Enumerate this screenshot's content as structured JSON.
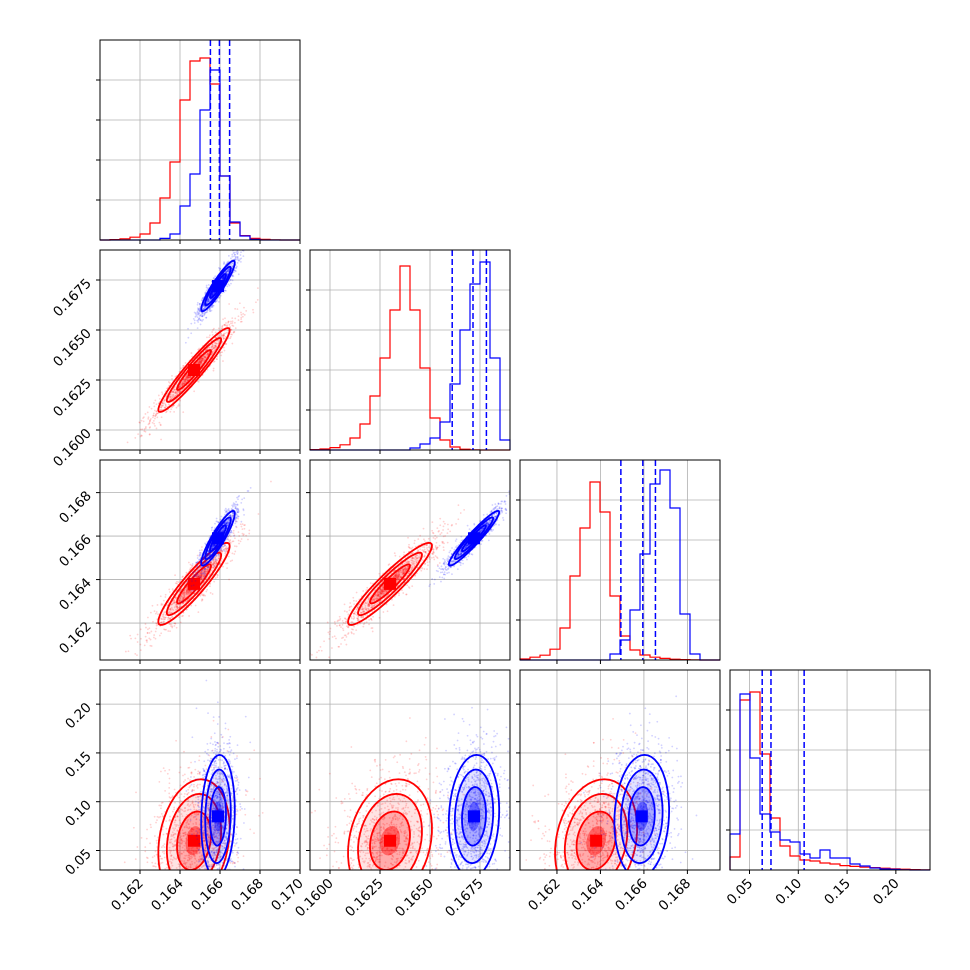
{
  "chart_data": {
    "type": "corner",
    "grid": true,
    "colors": {
      "series_a": "#ff0000",
      "series_b": "#0000ff",
      "axis": "#000000",
      "grid": "#b0b0b0"
    },
    "series_names": [],
    "params": [
      {
        "range": [
          0.16,
          0.17
        ],
        "ticks": [
          0.162,
          0.164,
          0.166,
          0.168,
          0.17
        ],
        "tick_labels": [
          "0.162",
          "0.164",
          "0.166",
          "0.168",
          "0.170"
        ]
      },
      {
        "range": [
          0.159,
          0.169
        ],
        "ticks": [
          0.16,
          0.1625,
          0.165,
          0.1675
        ],
        "tick_labels": [
          "0.1600",
          "0.1625",
          "0.1650",
          "0.1675"
        ]
      },
      {
        "range": [
          0.1603,
          0.1695
        ],
        "ticks": [
          0.162,
          0.164,
          0.166,
          0.168
        ],
        "tick_labels": [
          "0.162",
          "0.164",
          "0.166",
          "0.168"
        ]
      },
      {
        "range": [
          0.03,
          0.235
        ],
        "ticks": [
          0.05,
          0.1,
          0.15,
          0.2
        ],
        "tick_labels": [
          "0.05",
          "0.10",
          "0.15",
          "0.20"
        ]
      }
    ],
    "series": [
      {
        "color": "#ff0000",
        "mean": [
          0.1647,
          0.163,
          0.1638,
          0.06
        ],
        "sd": [
          0.00085,
          0.001,
          0.0009,
          0.03
        ],
        "corr": [
          [
            1,
            0.95,
            0.92,
            0.2
          ],
          [
            0.95,
            1,
            0.93,
            0.2
          ],
          [
            0.92,
            0.93,
            1,
            0.2
          ],
          [
            0.2,
            0.2,
            0.2,
            1
          ]
        ],
        "hist": [
          [
            0.0,
            0.002,
            0.006,
            0.014,
            0.03,
            0.085,
            0.21,
            0.39,
            0.7,
            0.895,
            0.91,
            0.78,
            0.32,
            0.085,
            0.022,
            0.008,
            0.003,
            0.001,
            0.0,
            0.0
          ],
          [
            0.002,
            0.005,
            0.012,
            0.026,
            0.06,
            0.13,
            0.27,
            0.46,
            0.7,
            0.92,
            0.7,
            0.41,
            0.16,
            0.05,
            0.015,
            0.004,
            0.001,
            0.0,
            0.0,
            0.0
          ],
          [
            0.005,
            0.014,
            0.024,
            0.054,
            0.16,
            0.42,
            0.66,
            0.89,
            0.74,
            0.32,
            0.12,
            0.05,
            0.025,
            0.014,
            0.008,
            0.004,
            0.002,
            0.001,
            0.0,
            0.0
          ],
          [
            0.065,
            0.85,
            0.89,
            0.58,
            0.26,
            0.12,
            0.07,
            0.05,
            0.045,
            0.035,
            0.03,
            0.022,
            0.018,
            0.014,
            0.012,
            0.009,
            0.006,
            0.004,
            0.002,
            0.001
          ]
        ]
      },
      {
        "color": "#0000ff",
        "mean": [
          0.1659,
          0.1672,
          0.1659,
          0.085
        ],
        "sd": [
          0.0004,
          0.0006,
          0.0006,
          0.03
        ],
        "corr": [
          [
            1,
            0.92,
            0.9,
            0.1
          ],
          [
            0.92,
            1,
            0.95,
            0.1
          ],
          [
            0.9,
            0.95,
            1,
            0.1
          ],
          [
            0.1,
            0.1,
            0.1,
            1
          ]
        ],
        "hist": [
          [
            0.0,
            0.0,
            0.0,
            0.0,
            0.0,
            0.0,
            0.008,
            0.03,
            0.17,
            0.33,
            0.65,
            0.85,
            0.32,
            0.09,
            0.02,
            0.003,
            0.0,
            0.0,
            0.0,
            0.0
          ],
          [
            0.0,
            0.0,
            0.0,
            0.0,
            0.0,
            0.0,
            0.0,
            0.0,
            0.0,
            0.0,
            0.01,
            0.03,
            0.06,
            0.14,
            0.33,
            0.6,
            0.83,
            0.94,
            0.46,
            0.05
          ],
          [
            0.0,
            0.0,
            0.0,
            0.0,
            0.0,
            0.0,
            0.0,
            0.0,
            0.0,
            0.03,
            0.1,
            0.25,
            0.53,
            0.88,
            0.95,
            0.76,
            0.23,
            0.03,
            0.0,
            0.0
          ],
          [
            0.18,
            0.88,
            0.56,
            0.28,
            0.19,
            0.15,
            0.14,
            0.08,
            0.06,
            0.1,
            0.06,
            0.06,
            0.03,
            0.02,
            0.01,
            0.005,
            0.003,
            0.001,
            0.0,
            0.0
          ]
        ]
      }
    ],
    "quantile_lines": [
      [
        0.16552,
        0.16597,
        0.16648
      ],
      [
        0.16611,
        0.16715,
        0.16782
      ],
      [
        0.16494,
        0.16595,
        0.16653
      ],
      [
        0.063,
        0.072,
        0.106
      ]
    ],
    "x_ticks_shown_on_bottom_row": true,
    "y_ticks_shown_on_left_column": true
  }
}
